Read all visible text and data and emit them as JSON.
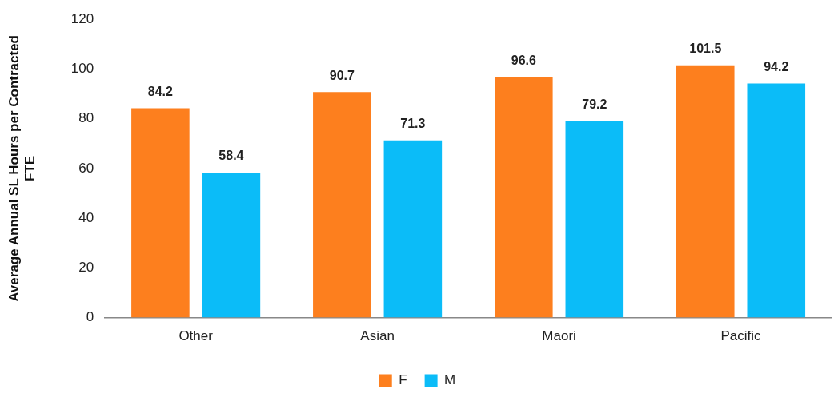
{
  "chart_data": {
    "type": "bar",
    "ylabel": "Average Annual SL Hours per Contracted FTE",
    "categories": [
      "Other",
      "Asian",
      "Māori",
      "Pacific"
    ],
    "series": [
      {
        "name": "F",
        "color": "#fd7f1e",
        "values": [
          84.2,
          90.7,
          96.6,
          101.5
        ]
      },
      {
        "name": "M",
        "color": "#0bbcf8",
        "values": [
          58.4,
          71.3,
          79.2,
          94.2
        ]
      }
    ],
    "ylim": [
      0,
      120
    ],
    "yticks": [
      0,
      20,
      40,
      60,
      80,
      100,
      120
    ],
    "grid": false,
    "legend": "bottom",
    "data_labels": true
  }
}
